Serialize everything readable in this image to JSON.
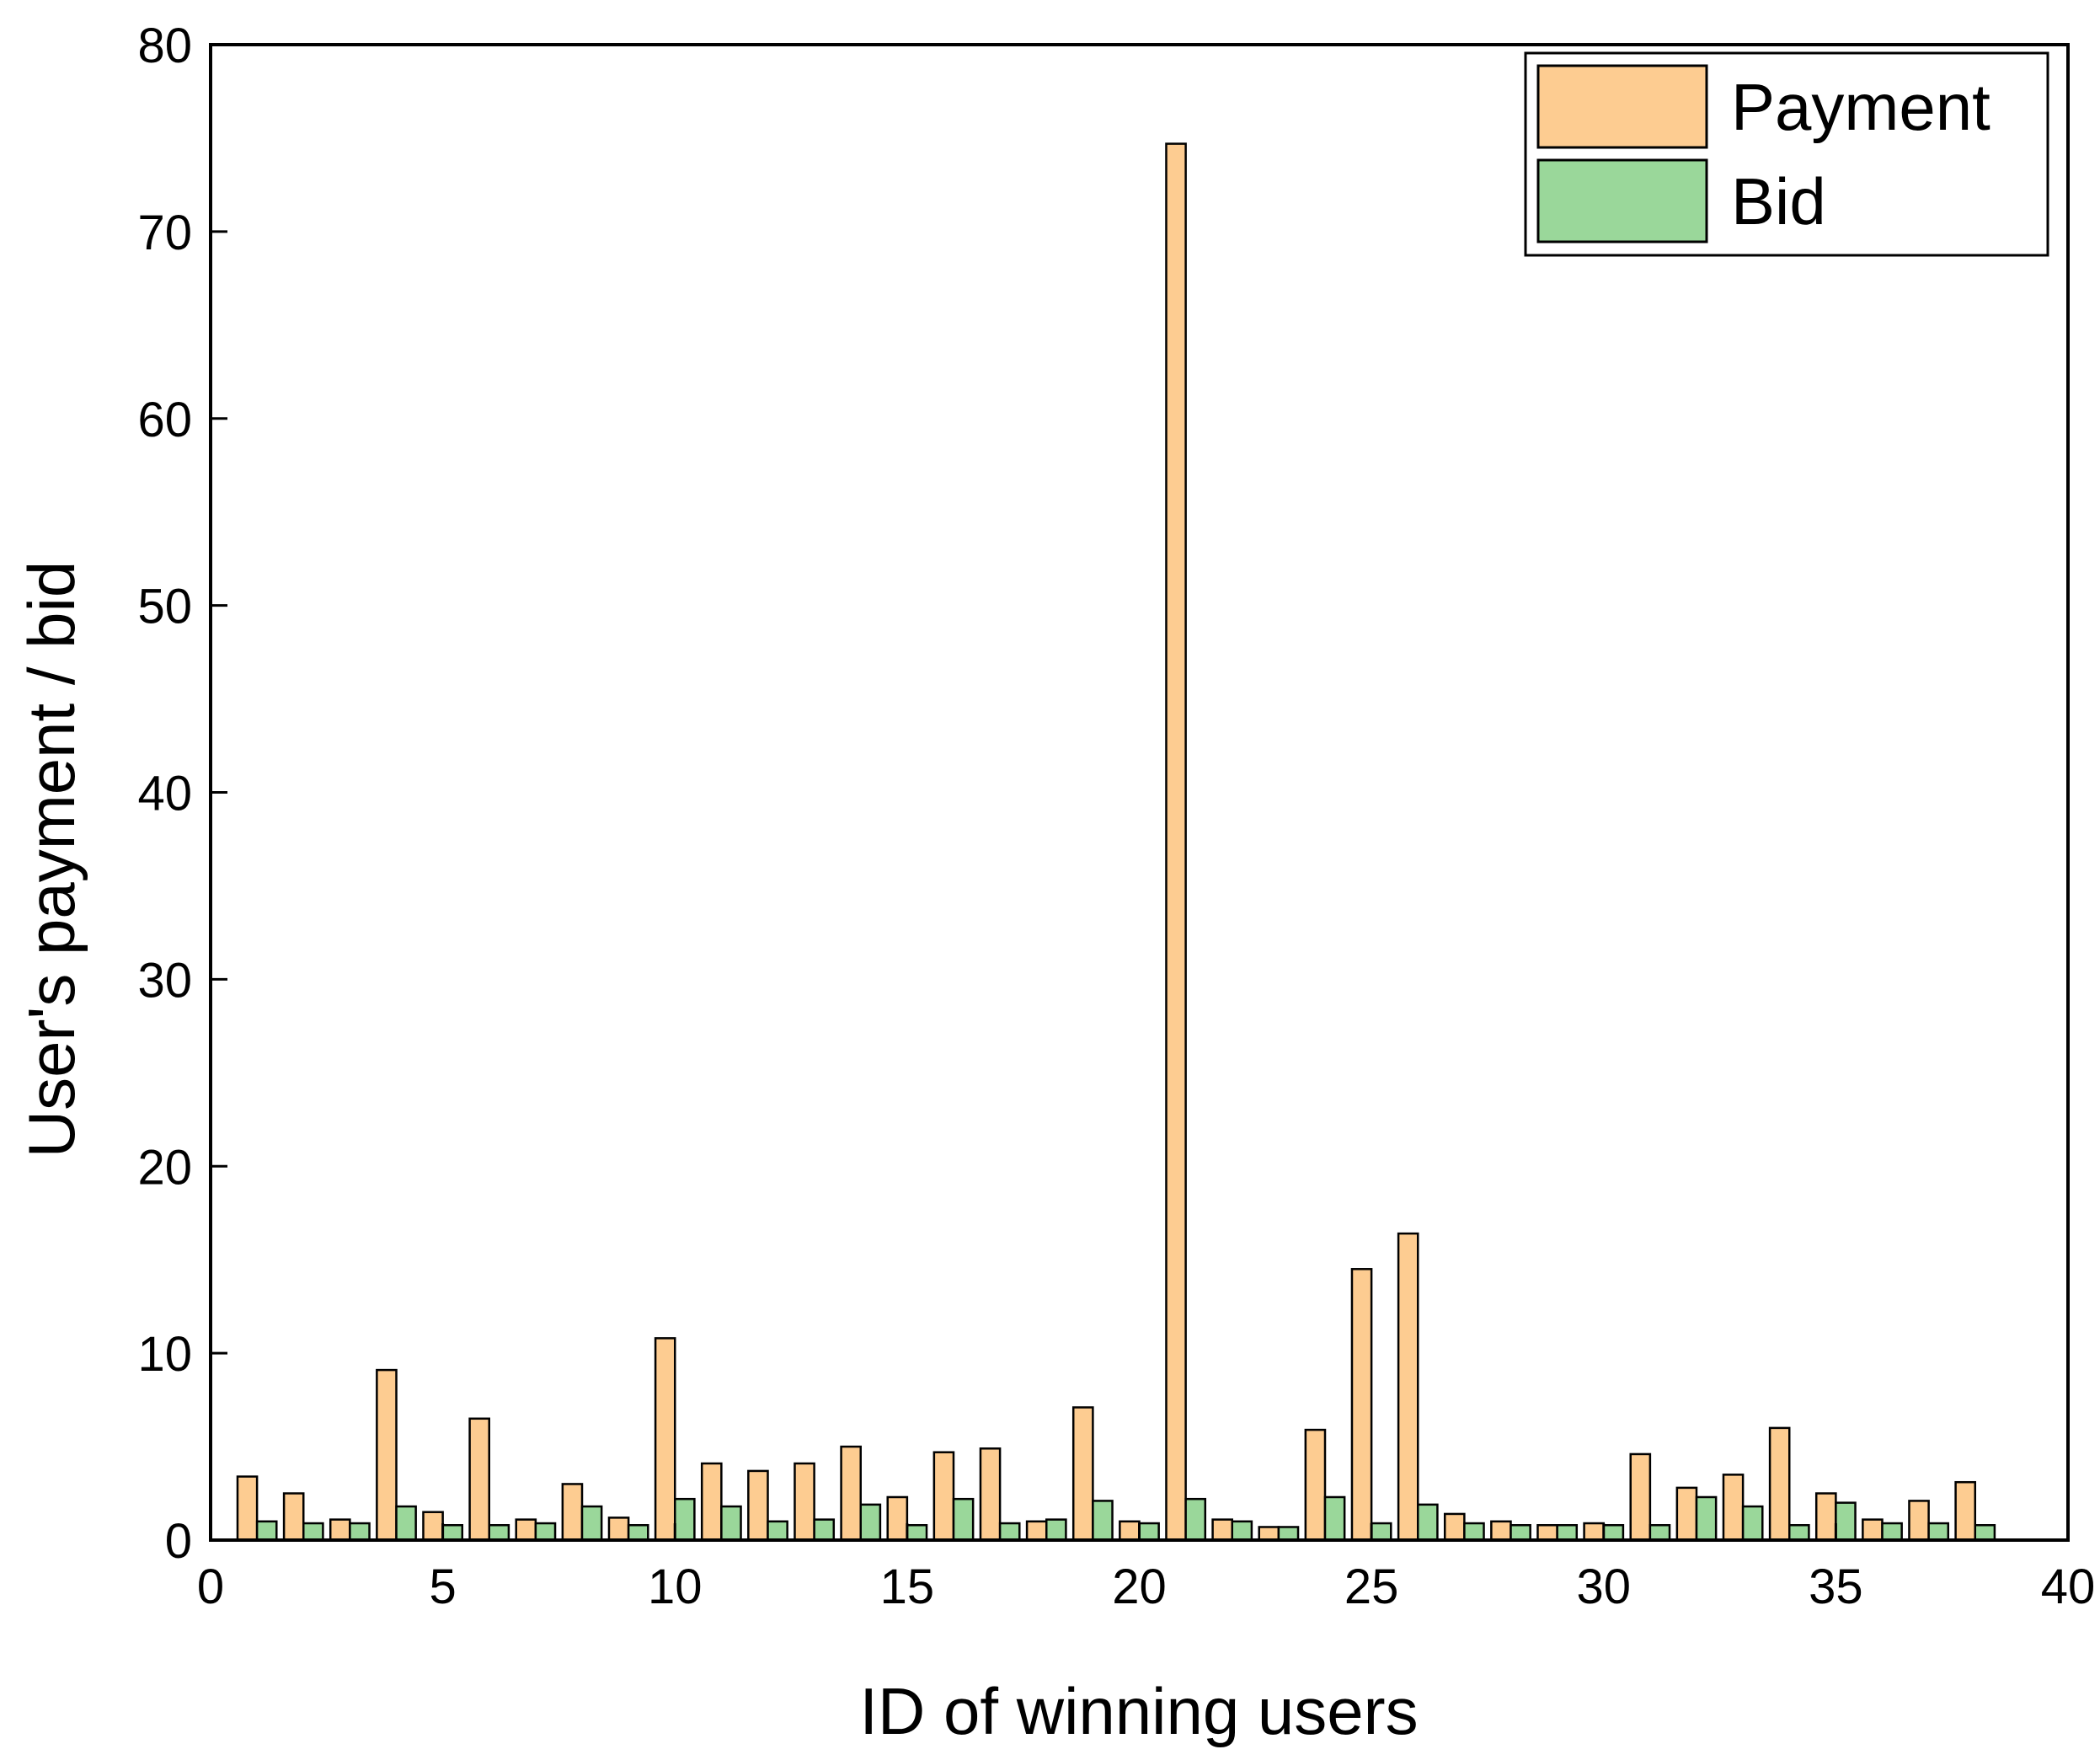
{
  "chart_data": {
    "type": "bar",
    "xlabel": "ID of winning users",
    "ylabel": "User's payment / bid",
    "xlim": [
      0,
      40
    ],
    "ylim": [
      0,
      80
    ],
    "xticks": [
      "0",
      "5",
      "10",
      "15",
      "20",
      "25",
      "30",
      "35",
      "40"
    ],
    "yticks": [
      "0",
      "10",
      "20",
      "30",
      "40",
      "50",
      "60",
      "70",
      "80"
    ],
    "legend_position": "top-right",
    "grid": false,
    "x": [
      1,
      2,
      3,
      4,
      5,
      6,
      7,
      8,
      9,
      10,
      11,
      12,
      13,
      14,
      15,
      16,
      17,
      18,
      19,
      20,
      21,
      22,
      23,
      24,
      25,
      26,
      27,
      28,
      29,
      30,
      31,
      32,
      33,
      34,
      35,
      36,
      37,
      38
    ],
    "series": [
      {
        "name": "Payment",
        "color": "#FDCC91",
        "values": [
          3.4,
          2.5,
          1.1,
          9.1,
          1.5,
          6.5,
          1.1,
          3.0,
          1.2,
          10.8,
          4.1,
          3.7,
          4.1,
          5.0,
          2.3,
          4.7,
          4.9,
          1.0,
          7.1,
          1.0,
          74.7,
          1.1,
          0.7,
          5.9,
          14.5,
          16.4,
          1.4,
          1.0,
          0.8,
          0.9,
          4.6,
          2.8,
          3.5,
          6.0,
          2.5,
          1.1,
          2.1,
          3.1
        ]
      },
      {
        "name": "Bid",
        "color": "#9AD79A",
        "values": [
          1.0,
          0.9,
          0.9,
          1.8,
          0.8,
          0.8,
          0.9,
          1.8,
          0.8,
          2.2,
          1.8,
          1.0,
          1.1,
          1.9,
          0.8,
          2.2,
          0.9,
          1.1,
          2.1,
          0.9,
          2.2,
          1.0,
          0.7,
          2.3,
          0.9,
          1.9,
          0.9,
          0.8,
          0.8,
          0.8,
          0.8,
          2.3,
          1.8,
          0.8,
          2.0,
          0.9,
          0.9,
          0.8
        ]
      }
    ]
  }
}
